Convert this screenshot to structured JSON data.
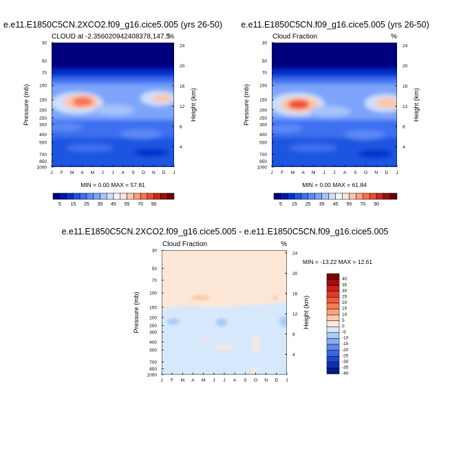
{
  "panels": [
    {
      "title": "e.e11.E1850C5CN.2XCO2.f09_g16.cice5.005 (yrs 26-50)",
      "subtitle_left": "CLOUD at -2.356020942408378,147.5",
      "subtitle_right": "%",
      "stats": "MIN =   0.00 MAX =  57.81"
    },
    {
      "title": "e.e11.E1850C5CN.f09_g16.cice5.005 (yrs 26-50)",
      "subtitle_left": "Cloud Fraction",
      "subtitle_right": "%",
      "stats": "MIN =   0.00 MAX =  61.84"
    },
    {
      "title": "e.e11.E1850C5CN.2XCO2.f09_g16.cice5.005 - e.e11.E1850C5CN.f09_g16.cice5.005",
      "subtitle_left": "Cloud Fraction",
      "subtitle_right": "%",
      "stats": "MIN = -13.22 MAX =  12.61"
    }
  ],
  "chart_data": [
    {
      "type": "heatmap",
      "title": "e.e11.E1850C5CN.2XCO2.f09_g16.cice5.005 (yrs 26-50)",
      "ylabel": "Pressure (mb)",
      "y2label": "Height (km)",
      "x_ticks": [
        "J",
        "F",
        "M",
        "A",
        "M",
        "J",
        "J",
        "A",
        "S",
        "O",
        "N",
        "D",
        "J"
      ],
      "y_ticks": [
        "30",
        "50",
        "70",
        "100",
        "150",
        "200",
        "250",
        "300",
        "400",
        "500",
        "700",
        "850",
        "1000"
      ],
      "y2_ticks": [
        "24",
        "20",
        "16",
        "12",
        "8",
        "4"
      ],
      "min": 0.0,
      "max": 57.81,
      "colorbar_labels": [
        "5",
        "15",
        "25",
        "35",
        "45",
        "55",
        "70",
        "90"
      ]
    },
    {
      "type": "heatmap",
      "title": "e.e11.E1850C5CN.f09_g16.cice5.005 (yrs 26-50)",
      "ylabel": "Pressure (mb)",
      "y2label": "Height (km)",
      "x_ticks": [
        "J",
        "F",
        "M",
        "A",
        "M",
        "J",
        "J",
        "A",
        "S",
        "O",
        "N",
        "D",
        "J"
      ],
      "y_ticks": [
        "30",
        "50",
        "70",
        "100",
        "150",
        "200",
        "250",
        "300",
        "400",
        "500",
        "700",
        "850",
        "1000"
      ],
      "y2_ticks": [
        "24",
        "20",
        "16",
        "12",
        "8",
        "4"
      ],
      "min": 0.0,
      "max": 61.84,
      "colorbar_labels": [
        "5",
        "15",
        "25",
        "35",
        "45",
        "55",
        "70",
        "90"
      ]
    },
    {
      "type": "heatmap",
      "title": "e.e11.E1850C5CN.2XCO2.f09_g16.cice5.005 - e.e11.E1850C5CN.f09_g16.cice5.005",
      "ylabel": "Pressure (mb)",
      "y2label": "Height (km)",
      "x_ticks": [
        "J",
        "F",
        "M",
        "A",
        "M",
        "J",
        "J",
        "A",
        "S",
        "O",
        "N",
        "D",
        "J"
      ],
      "y_ticks": [
        "30",
        "50",
        "70",
        "100",
        "150",
        "200",
        "250",
        "300",
        "400",
        "500",
        "700",
        "850",
        "1000"
      ],
      "y2_ticks": [
        "24",
        "20",
        "16",
        "12",
        "8",
        "4"
      ],
      "min": -13.22,
      "max": 12.61,
      "colorbar_labels": [
        "40",
        "35",
        "30",
        "25",
        "20",
        "15",
        "10",
        "5",
        "0",
        "-5",
        "-10",
        "-15",
        "-20",
        "-25",
        "-30",
        "-35",
        "-40"
      ]
    }
  ],
  "colors": {
    "seq": [
      "#00007f",
      "#0018a8",
      "#0032cc",
      "#1f55e0",
      "#3e6ff0",
      "#5c8af5",
      "#7da4fa",
      "#a6c2fc",
      "#cde0fd",
      "#eef6ff",
      "#fde5d5",
      "#fcc7a9",
      "#fba07c",
      "#f77250",
      "#ee4a2e",
      "#c9271c",
      "#9a0f0f",
      "#6b0000"
    ],
    "div": [
      "#7f0000",
      "#a80b0b",
      "#cc1f1f",
      "#e23a2a",
      "#f25a3a",
      "#f87d55",
      "#fba37e",
      "#fcc9ab",
      "#fde8d7",
      "#d6e8fc",
      "#aacbf8",
      "#85adf3",
      "#5d8aec",
      "#3a67e2",
      "#1f48cf",
      "#0e2eae",
      "#001a8a"
    ],
    "diff_bg": "#d6e8fc",
    "diff_pos": "#fde8d7"
  }
}
